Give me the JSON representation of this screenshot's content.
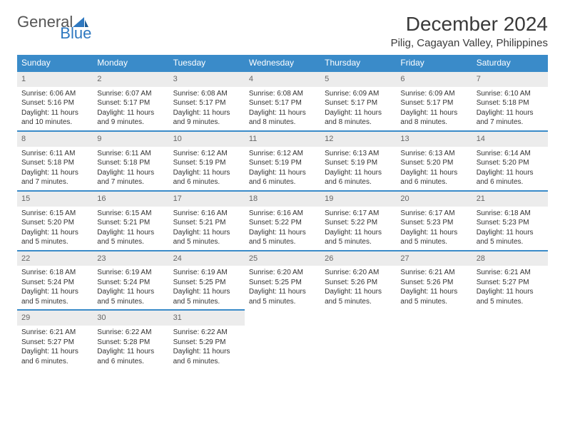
{
  "brand": {
    "part1": "General",
    "part2": "Blue"
  },
  "title": "December 2024",
  "location": "Pilig, Cagayan Valley, Philippines",
  "colors": {
    "header_bg": "#3a8bc9",
    "header_text": "#ffffff",
    "daynum_bg": "#ececec",
    "daynum_text": "#666666",
    "row_divider": "#3a8bc9",
    "body_text": "#333333",
    "page_bg": "#ffffff",
    "brand_blue": "#2e78c0",
    "brand_gray": "#555555"
  },
  "typography": {
    "title_fontsize_pt": 21,
    "subtitle_fontsize_pt": 11,
    "weekday_fontsize_pt": 9,
    "daynum_fontsize_pt": 8,
    "body_fontsize_pt": 7.5
  },
  "weekdays": [
    "Sunday",
    "Monday",
    "Tuesday",
    "Wednesday",
    "Thursday",
    "Friday",
    "Saturday"
  ],
  "weeks": [
    [
      {
        "day": "1",
        "sunrise": "Sunrise: 6:06 AM",
        "sunset": "Sunset: 5:16 PM",
        "daylight": "Daylight: 11 hours and 10 minutes."
      },
      {
        "day": "2",
        "sunrise": "Sunrise: 6:07 AM",
        "sunset": "Sunset: 5:17 PM",
        "daylight": "Daylight: 11 hours and 9 minutes."
      },
      {
        "day": "3",
        "sunrise": "Sunrise: 6:08 AM",
        "sunset": "Sunset: 5:17 PM",
        "daylight": "Daylight: 11 hours and 9 minutes."
      },
      {
        "day": "4",
        "sunrise": "Sunrise: 6:08 AM",
        "sunset": "Sunset: 5:17 PM",
        "daylight": "Daylight: 11 hours and 8 minutes."
      },
      {
        "day": "5",
        "sunrise": "Sunrise: 6:09 AM",
        "sunset": "Sunset: 5:17 PM",
        "daylight": "Daylight: 11 hours and 8 minutes."
      },
      {
        "day": "6",
        "sunrise": "Sunrise: 6:09 AM",
        "sunset": "Sunset: 5:17 PM",
        "daylight": "Daylight: 11 hours and 8 minutes."
      },
      {
        "day": "7",
        "sunrise": "Sunrise: 6:10 AM",
        "sunset": "Sunset: 5:18 PM",
        "daylight": "Daylight: 11 hours and 7 minutes."
      }
    ],
    [
      {
        "day": "8",
        "sunrise": "Sunrise: 6:11 AM",
        "sunset": "Sunset: 5:18 PM",
        "daylight": "Daylight: 11 hours and 7 minutes."
      },
      {
        "day": "9",
        "sunrise": "Sunrise: 6:11 AM",
        "sunset": "Sunset: 5:18 PM",
        "daylight": "Daylight: 11 hours and 7 minutes."
      },
      {
        "day": "10",
        "sunrise": "Sunrise: 6:12 AM",
        "sunset": "Sunset: 5:19 PM",
        "daylight": "Daylight: 11 hours and 6 minutes."
      },
      {
        "day": "11",
        "sunrise": "Sunrise: 6:12 AM",
        "sunset": "Sunset: 5:19 PM",
        "daylight": "Daylight: 11 hours and 6 minutes."
      },
      {
        "day": "12",
        "sunrise": "Sunrise: 6:13 AM",
        "sunset": "Sunset: 5:19 PM",
        "daylight": "Daylight: 11 hours and 6 minutes."
      },
      {
        "day": "13",
        "sunrise": "Sunrise: 6:13 AM",
        "sunset": "Sunset: 5:20 PM",
        "daylight": "Daylight: 11 hours and 6 minutes."
      },
      {
        "day": "14",
        "sunrise": "Sunrise: 6:14 AM",
        "sunset": "Sunset: 5:20 PM",
        "daylight": "Daylight: 11 hours and 6 minutes."
      }
    ],
    [
      {
        "day": "15",
        "sunrise": "Sunrise: 6:15 AM",
        "sunset": "Sunset: 5:20 PM",
        "daylight": "Daylight: 11 hours and 5 minutes."
      },
      {
        "day": "16",
        "sunrise": "Sunrise: 6:15 AM",
        "sunset": "Sunset: 5:21 PM",
        "daylight": "Daylight: 11 hours and 5 minutes."
      },
      {
        "day": "17",
        "sunrise": "Sunrise: 6:16 AM",
        "sunset": "Sunset: 5:21 PM",
        "daylight": "Daylight: 11 hours and 5 minutes."
      },
      {
        "day": "18",
        "sunrise": "Sunrise: 6:16 AM",
        "sunset": "Sunset: 5:22 PM",
        "daylight": "Daylight: 11 hours and 5 minutes."
      },
      {
        "day": "19",
        "sunrise": "Sunrise: 6:17 AM",
        "sunset": "Sunset: 5:22 PM",
        "daylight": "Daylight: 11 hours and 5 minutes."
      },
      {
        "day": "20",
        "sunrise": "Sunrise: 6:17 AM",
        "sunset": "Sunset: 5:23 PM",
        "daylight": "Daylight: 11 hours and 5 minutes."
      },
      {
        "day": "21",
        "sunrise": "Sunrise: 6:18 AM",
        "sunset": "Sunset: 5:23 PM",
        "daylight": "Daylight: 11 hours and 5 minutes."
      }
    ],
    [
      {
        "day": "22",
        "sunrise": "Sunrise: 6:18 AM",
        "sunset": "Sunset: 5:24 PM",
        "daylight": "Daylight: 11 hours and 5 minutes."
      },
      {
        "day": "23",
        "sunrise": "Sunrise: 6:19 AM",
        "sunset": "Sunset: 5:24 PM",
        "daylight": "Daylight: 11 hours and 5 minutes."
      },
      {
        "day": "24",
        "sunrise": "Sunrise: 6:19 AM",
        "sunset": "Sunset: 5:25 PM",
        "daylight": "Daylight: 11 hours and 5 minutes."
      },
      {
        "day": "25",
        "sunrise": "Sunrise: 6:20 AM",
        "sunset": "Sunset: 5:25 PM",
        "daylight": "Daylight: 11 hours and 5 minutes."
      },
      {
        "day": "26",
        "sunrise": "Sunrise: 6:20 AM",
        "sunset": "Sunset: 5:26 PM",
        "daylight": "Daylight: 11 hours and 5 minutes."
      },
      {
        "day": "27",
        "sunrise": "Sunrise: 6:21 AM",
        "sunset": "Sunset: 5:26 PM",
        "daylight": "Daylight: 11 hours and 5 minutes."
      },
      {
        "day": "28",
        "sunrise": "Sunrise: 6:21 AM",
        "sunset": "Sunset: 5:27 PM",
        "daylight": "Daylight: 11 hours and 5 minutes."
      }
    ],
    [
      {
        "day": "29",
        "sunrise": "Sunrise: 6:21 AM",
        "sunset": "Sunset: 5:27 PM",
        "daylight": "Daylight: 11 hours and 6 minutes."
      },
      {
        "day": "30",
        "sunrise": "Sunrise: 6:22 AM",
        "sunset": "Sunset: 5:28 PM",
        "daylight": "Daylight: 11 hours and 6 minutes."
      },
      {
        "day": "31",
        "sunrise": "Sunrise: 6:22 AM",
        "sunset": "Sunset: 5:29 PM",
        "daylight": "Daylight: 11 hours and 6 minutes."
      },
      null,
      null,
      null,
      null
    ]
  ]
}
